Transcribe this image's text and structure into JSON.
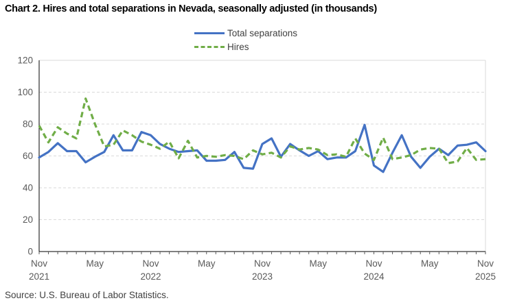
{
  "title": "Chart 2. Hires and total separations in Nevada, seasonally adjusted (in thousands)",
  "source": "Source: U.S. Bureau of Labor Statistics.",
  "colors": {
    "separations": "#4472C4",
    "hires": "#70AD47",
    "grid": "#D9D9D9",
    "axis": "#000000",
    "tick": "#595959",
    "tick_label": "#595959"
  },
  "legend": [
    {
      "label": "Total separations",
      "color": "#4472C4",
      "style": "solid"
    },
    {
      "label": "Hires",
      "color": "#70AD47",
      "style": "dashed"
    }
  ],
  "chart_data": {
    "type": "line",
    "title": "Chart 2. Hires and total separations in Nevada, seasonally adjusted (in thousands)",
    "xlabel": "",
    "ylabel": "",
    "ylim": [
      0,
      120
    ],
    "y_ticks": [
      0,
      20,
      40,
      60,
      80,
      100,
      120
    ],
    "grid": true,
    "legend_position": "top",
    "categories": [
      "Nov 2021",
      "Dec 2021",
      "Jan 2022",
      "Feb 2022",
      "Mar 2022",
      "Apr 2022",
      "May 2022",
      "Jun 2022",
      "Jul 2022",
      "Aug 2022",
      "Sep 2022",
      "Oct 2022",
      "Nov 2022",
      "Dec 2022",
      "Jan 2023",
      "Feb 2023",
      "Mar 2023",
      "Apr 2023",
      "May 2023",
      "Jun 2023",
      "Jul 2023",
      "Aug 2023",
      "Sep 2023",
      "Oct 2023",
      "Nov 2023",
      "Dec 2023",
      "Jan 2024",
      "Feb 2024",
      "Mar 2024",
      "Apr 2024",
      "May 2024",
      "Jun 2024",
      "Jul 2024",
      "Aug 2024",
      "Sep 2024",
      "Oct 2024",
      "Nov 2024",
      "Dec 2024",
      "Jan 2025",
      "Feb 2025",
      "Mar 2025",
      "Apr 2025",
      "May 2025",
      "Jun 2025",
      "Jul 2025",
      "Aug 2025",
      "Sep 2025",
      "Oct 2025",
      "Nov 2025"
    ],
    "x_major_ticks": [
      {
        "index": 0,
        "month": "Nov",
        "year": "2021"
      },
      {
        "index": 6,
        "month": "May"
      },
      {
        "index": 12,
        "month": "Nov",
        "year": "2022"
      },
      {
        "index": 18,
        "month": "May"
      },
      {
        "index": 24,
        "month": "Nov",
        "year": "2023"
      },
      {
        "index": 30,
        "month": "May"
      },
      {
        "index": 36,
        "month": "Nov",
        "year": "2024"
      },
      {
        "index": 42,
        "month": "May"
      },
      {
        "index": 48,
        "month": "Nov",
        "year": "2025"
      }
    ],
    "series": [
      {
        "name": "Total separations",
        "color": "#4472C4",
        "dash": "solid",
        "values": [
          59,
          62.5,
          68,
          63,
          63,
          56,
          59.5,
          62.5,
          73,
          63.5,
          63.5,
          75,
          73,
          67.5,
          64.5,
          62.5,
          63,
          63.5,
          57,
          57,
          57.5,
          62.5,
          52.5,
          52,
          67.5,
          71,
          59.5,
          67.5,
          63.5,
          60,
          63,
          58,
          59,
          59,
          63,
          79.5,
          54,
          50,
          62,
          73,
          59.5,
          52.5,
          59.5,
          64.5,
          60.5,
          66.5,
          67,
          68.5,
          63
        ]
      },
      {
        "name": "Hires",
        "color": "#70AD47",
        "dash": "dashed",
        "values": [
          79,
          68.5,
          78,
          74,
          71,
          96,
          80,
          66,
          67,
          76,
          73,
          69,
          67,
          64.5,
          69,
          58.5,
          69.5,
          59,
          60,
          59.5,
          60.5,
          60,
          58,
          63.5,
          61,
          62,
          59,
          66,
          64,
          65,
          64,
          60.5,
          61,
          59.5,
          71,
          61.5,
          57.5,
          71.5,
          58,
          59,
          60.5,
          64,
          65,
          64.5,
          55.5,
          56.5,
          65,
          57.5,
          58
        ]
      }
    ]
  }
}
